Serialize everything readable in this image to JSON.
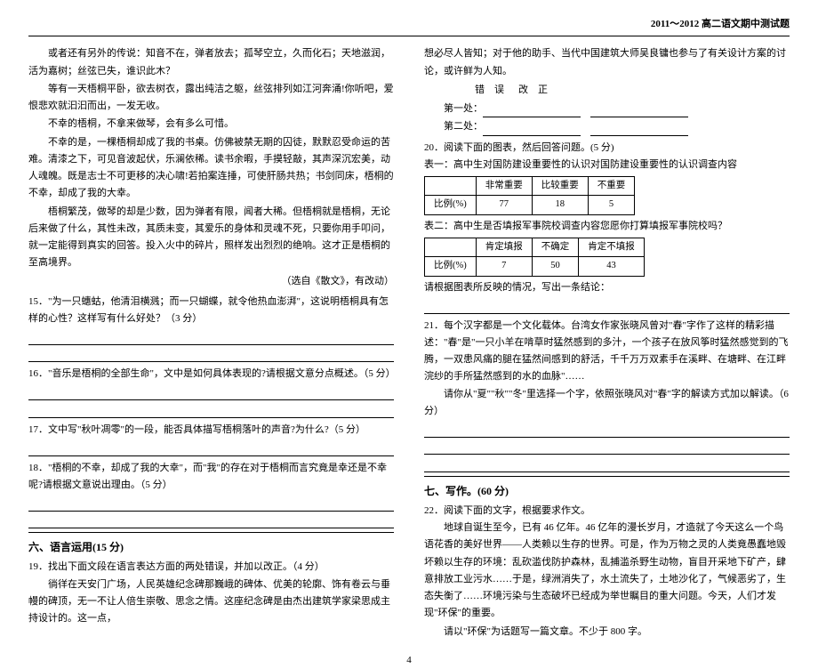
{
  "header": "2011～2012 高二语文期中测试题",
  "left": {
    "p1": "或者还有另外的传说：知音不在，弹者放去；孤琴空立，久而化石；天地滋润，活为嘉树；丝弦已失，谁识此木？",
    "p2": "等有一天梧桐平卧，欲去树衣，露出纯洁之躯，丝弦排列如江河奔涌!你听吧，爱恨悲欢就汩汩而出，一发无收。",
    "p3": "不幸的梧桐，不拿来做琴，会有多么可惜。",
    "p4": "不幸的是，一棵梧桐却成了我的书桌。仿佛被禁无期的囚徒，默默忍受命运的苦难。清漆之下，可见音波起伏，乐澜依稀。读书余暇，手摸轻敲，其声深沉宏美，动人魂魄。既是志士不可更移的决心啸!若拍案连捶，可使肝肠共热；书剑同床，梧桐的不幸，却成了我的大幸。",
    "p5": "梧桐繁茂，做琴的却是少数，因为弹者有限，闻者大稀。但梧桐就是梧桐，无论后来做了什么，其性未改，其质未变，其爱乐的身体和灵魂不死，只要你用手叩问，就一定能得到真实的回答。投入火中的碎片，照样发出烈烈的绝响。这才正是梧桐的至高境界。",
    "source": "（选自《散文》，有改动）",
    "q15": "15．\"为一只蟪蛄，他清泪横溅；而一只蝴蝶，就令他热血澎湃\"，这说明梧桐具有怎样的心性？这样写有什么好处？（3 分）",
    "q16": "16．\"音乐是梧桐的全部生命\"，文中是如何具体表现的?请根据文意分点概述。（5 分）",
    "q17": "17．文中写\"秋叶凋零\"的一段，能否具体描写梧桐落叶的声音?为什么?（5 分）",
    "q18": "18．\"梧桐的不幸，却成了我的大幸\"，而\"我\"的存在对于梧桐而言究竟是幸还是不幸呢?请根据文意说出理由。（5 分）",
    "section6": "六、语言运用(15 分)",
    "q19a": "19．找出下面文段在语言表达方面的两处错误，并加以改正。（4 分）",
    "q19b": "徜徉在天安门广场，人民英雄纪念碑那巍峨的碑体、优美的轮廓、饰有卷云与垂幔的碑顶，无一不让人倍生崇敬、思念之情。这座纪念碑是由杰出建筑学家梁思成主持设计的。这一点，",
    "page_num": "4"
  },
  "right": {
    "p1": "想必尽人皆知；对于他的助手、当代中国建筑大师吴良镛也参与了有关设计方案的讨论，或许鲜为人知。",
    "corr_head_err": "错　误",
    "corr_head_fix": "改　正",
    "row1": "第一处：",
    "row2": "第二处：",
    "q20": "20．阅读下面的图表，然后回答问题。(5 分)",
    "t1_caption": "表一：高中生对国防建设重要性的认识对国防建设重要性的认识调查内容",
    "t1": {
      "h1": "非常重要",
      "h2": "比较重要",
      "h3": "不重要",
      "rlabel": "比例(%)",
      "c1": "77",
      "c2": "18",
      "c3": "5"
    },
    "t2_caption": "表二：高中生是否填报军事院校调查内容您愿你打算填报军事院校吗？",
    "t2": {
      "h1": "肯定填报",
      "h2": "不确定",
      "h3": "肯定不填报",
      "rlabel": "比例(%)",
      "c1": "7",
      "c2": "50",
      "c3": "43"
    },
    "q20b": "请根据图表所反映的情况，写出一条结论：",
    "q21a": "21．每个汉字都是一个文化载体。台湾女作家张晓风曾对\"春\"字作了这样的精彩描述：\"春\"是\"一只小羊在啃草时猛然感到的多汁，一个孩子在放风筝时猛然感觉到的飞腾，一双患风痛的腿在猛然间感到的舒活，千千万万双素手在溪畔、在塘畔、在江畔浣纱的手所猛然感到的水的血脉\"……",
    "q21b": "请你从\"夏\"\"秋\"\"冬\"里选择一个字，依照张晓风对\"春\"字的解读方式加以解读。（6分）",
    "section7": "七、写作。(60 分)",
    "q22a": "22．阅读下面的文字，根据要求作文。",
    "q22b": "地球自诞生至今，已有 46 亿年。46 亿年的漫长岁月，才造就了今天这么一个鸟语花香的美好世界——人类赖以生存的世界。可是，作为万物之灵的人类竟愚蠢地毁坏赖以生存的环境：乱砍滥伐防护森林，乱捕滥杀野生动物，盲目开采地下矿产，肆意排放工业污水……于是，绿洲消失了，水土流失了，土地沙化了，气候恶劣了，生态失衡了……环境污染与生态破坏已经成为举世瞩目的重大问题。今天，人们才发现\"环保\"的重要。",
    "q22c": "请以\"环保\"为话题写一篇文章。不少于 800 字。"
  }
}
